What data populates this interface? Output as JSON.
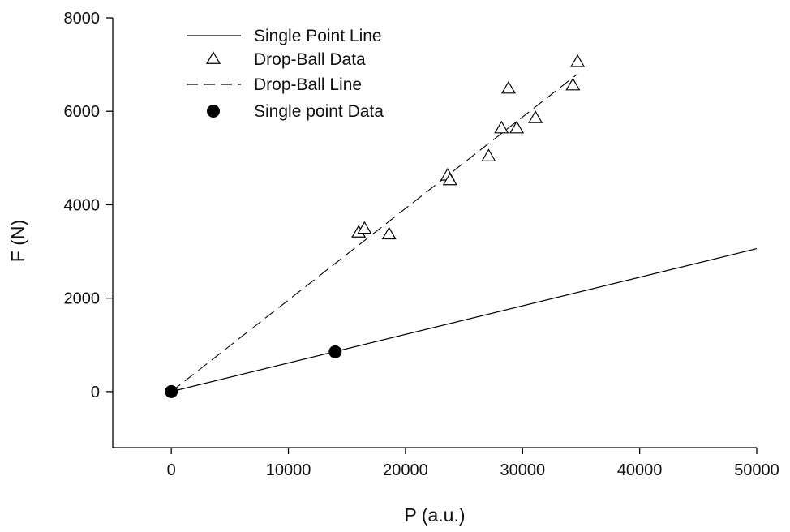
{
  "chart_data": {
    "type": "scatter",
    "xlabel": "P (a.u.)",
    "ylabel": "F (N)",
    "xlim": [
      -5000,
      50000
    ],
    "ylim": [
      -1200,
      8000
    ],
    "x_ticks": [
      0,
      10000,
      20000,
      30000,
      40000,
      50000
    ],
    "y_ticks": [
      0,
      2000,
      4000,
      6000,
      8000
    ],
    "x_tick_labels": [
      "0",
      "10000",
      "20000",
      "30000",
      "40000",
      "50000"
    ],
    "y_tick_labels": [
      "0",
      "2000",
      "4000",
      "6000",
      "8000"
    ],
    "grid": false,
    "legend_position": "top-left",
    "series": [
      {
        "name": "Single Point Line",
        "kind": "line",
        "style": "solid",
        "x": [
          0,
          50000
        ],
        "y": [
          0,
          3060
        ]
      },
      {
        "name": "Drop-Ball Data",
        "kind": "scatter",
        "marker": "open-triangle",
        "x": [
          16000,
          16500,
          18600,
          23600,
          23800,
          27100,
          28200,
          28800,
          29500,
          31100,
          34300,
          34700
        ],
        "y": [
          3400,
          3480,
          3360,
          4620,
          4520,
          5030,
          5630,
          6480,
          5630,
          5850,
          6550,
          7050
        ]
      },
      {
        "name": "Drop-Ball Line",
        "kind": "line",
        "style": "dashed",
        "x": [
          0,
          34700
        ],
        "y": [
          0,
          6800
        ]
      },
      {
        "name": "Single point Data",
        "kind": "scatter",
        "marker": "filled-circle",
        "x": [
          0,
          14000
        ],
        "y": [
          0,
          850
        ]
      }
    ]
  }
}
